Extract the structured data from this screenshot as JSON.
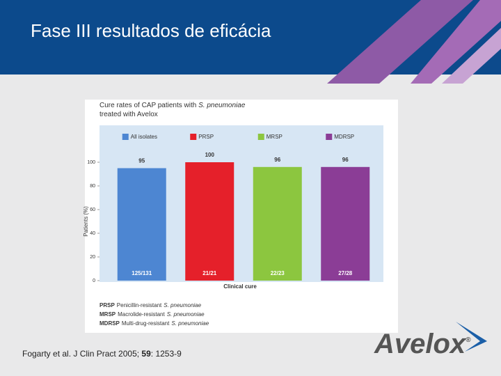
{
  "slide": {
    "title": "Fase III resultados de eficácia",
    "citation": [
      "Fogarty et al. J Clin Pract 2005; ",
      "59",
      ": 1253-9"
    ],
    "logo": "Avelox",
    "logo_mark": "®"
  },
  "chart_data": {
    "type": "bar",
    "title": [
      "Cure rates of CAP patients with ",
      "S. pneumoniae",
      "treated with Avelox"
    ],
    "categories": [
      "All isolates",
      "PRSP",
      "MRSP",
      "MDRSP"
    ],
    "values": [
      95,
      100,
      96,
      96
    ],
    "colors": [
      "#4d86d2",
      "#e5202a",
      "#8cc63f",
      "#8b3d96"
    ],
    "bar_labels": [
      "125/131",
      "21/21",
      "22/23",
      "27/28"
    ],
    "x_label": "Clinical cure",
    "y_label": "Patients (%)",
    "ylim": [
      0,
      130
    ],
    "yticks": [
      0,
      20,
      40,
      60,
      80,
      100
    ],
    "footnotes": [
      {
        "abbr": "PRSP",
        "text": "Penicillin-resistant",
        "organism": "S. pneumoniae"
      },
      {
        "abbr": "MRSP",
        "text": "Macrolide-resistant",
        "organism": "S. pneumoniae"
      },
      {
        "abbr": "MDRSP",
        "text": "Multi-drug-resistant",
        "organism": "S. pneumoniae"
      }
    ]
  }
}
